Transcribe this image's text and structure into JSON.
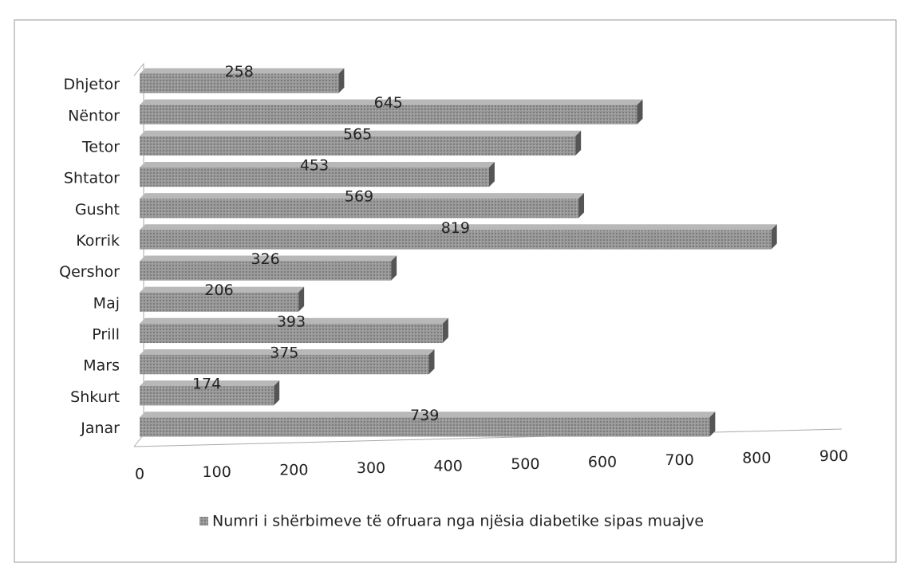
{
  "chart_data": {
    "type": "bar",
    "orientation": "horizontal",
    "categories": [
      "Janar",
      "Shkurt",
      "Mars",
      "Prill",
      "Maj",
      "Qershor",
      "Korrik",
      "Gusht",
      "Shtator",
      "Tetor",
      "Nëntor",
      "Dhjetor"
    ],
    "series": [
      {
        "name": "Numri i shërbimeve të ofruara nga njësia diabetike sipas muajve",
        "color": "#8a8a8a",
        "values": [
          739,
          174,
          375,
          393,
          206,
          326,
          819,
          569,
          453,
          565,
          645,
          258
        ]
      }
    ],
    "xlim": [
      0,
      900
    ],
    "xticks": [
      0,
      100,
      200,
      300,
      400,
      500,
      600,
      700,
      800,
      900
    ],
    "legend": "bottom"
  }
}
